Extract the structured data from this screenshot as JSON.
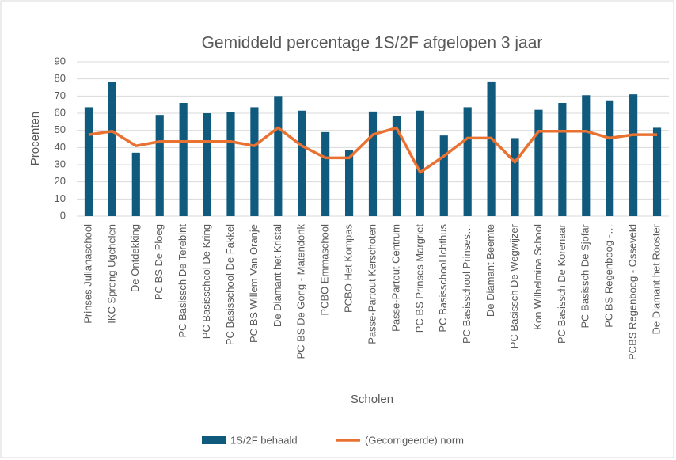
{
  "chart_data": {
    "type": "bar_line",
    "title": "Gemiddeld percentage 1S/2F afgelopen 3 jaar",
    "x_label": "Scholen",
    "y_label": "Procenten",
    "categories": [
      "Prinses Julianaschool",
      "IKC Spreng Ugchelen",
      "De Ontdekking",
      "PC BS De Ploeg",
      "PC Basissch De Terebint",
      "PC Basisschool De Kring",
      "PC Basisschool De Fakkel",
      "PC BS Willem Van Oranje",
      "De Diamant het Kristal",
      "PC BS De Gong - Matendonk",
      "PCBO Emmaschool",
      "PCBO Het Kompas",
      "Passe-Partout Kerschoten",
      "Passe-Partout Centrum",
      "PC BS Prinses Margriet",
      "PC Basisschool Ichthus",
      "PC Basisschool Prinses…",
      "De Diamant Beemte",
      "PC Basissch De Wegwijzer",
      "Kon Wilhelmina School",
      "PC Basissch De Korenaar",
      "PC Basissch De Sjofar",
      "PC BS Regenboog -…",
      "PCBS Regenboog - Osseveld",
      "De Diamant het Rooster"
    ],
    "series": [
      {
        "name": "1S/2F behaald",
        "type": "bar",
        "color": "#0f5a7d",
        "values": [
          63.5,
          78,
          37,
          59,
          66,
          60,
          60.5,
          63.5,
          70,
          61.5,
          49,
          38.5,
          61,
          58.5,
          61.5,
          47,
          63.5,
          78.5,
          45.5,
          62,
          66,
          70.5,
          67.5,
          71,
          51.5
        ]
      },
      {
        "name": "(Gecorrigeerde) norm",
        "type": "line",
        "color": "#e97132",
        "values": [
          47.5,
          49.5,
          41,
          43.5,
          43.5,
          43.5,
          43.5,
          41,
          51.5,
          41,
          34,
          34,
          47.5,
          51.5,
          25.5,
          35,
          45.5,
          45.5,
          31.5,
          49.5,
          49.5,
          49.5,
          45.5,
          47.5,
          47.5
        ]
      }
    ],
    "ylim": [
      0,
      90
    ],
    "yticks": [
      0,
      10,
      20,
      30,
      40,
      50,
      60,
      70,
      80,
      90
    ],
    "grid": true,
    "legend": "bottom"
  }
}
